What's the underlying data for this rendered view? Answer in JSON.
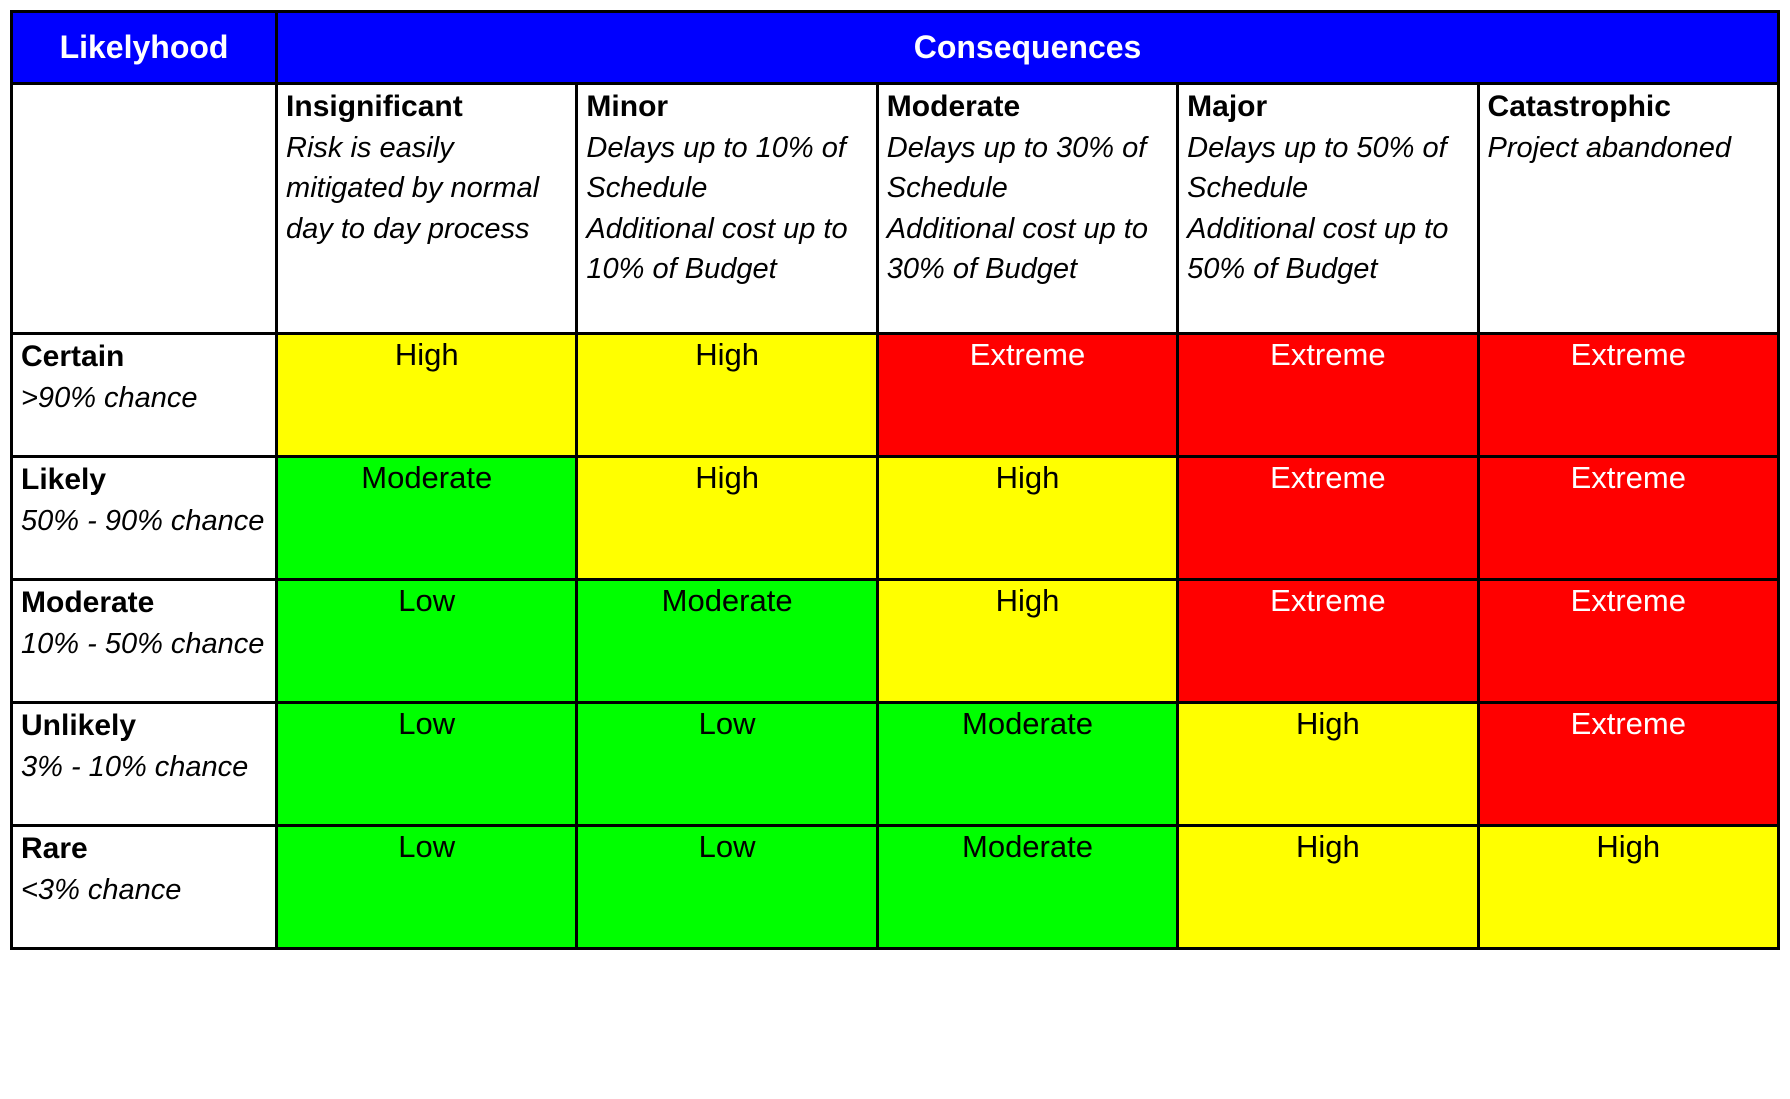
{
  "table": {
    "likelihood_header": "Likelyhood",
    "consequences_header": "Consequences",
    "columns": [
      {
        "name": "Insignificant",
        "description": "Risk is easily mitigated by normal day to day process"
      },
      {
        "name": "Minor",
        "description": "Delays up to 10% of Schedule\nAdditional cost up to 10% of Budget"
      },
      {
        "name": "Moderate",
        "description": "Delays up to 30% of Schedule\nAdditional cost up to 30% of Budget"
      },
      {
        "name": "Major",
        "description": "Delays up to 50% of Schedule\nAdditional cost up to 50% of Budget"
      },
      {
        "name": "Catastrophic",
        "description": "Project abandoned"
      }
    ],
    "rows": [
      {
        "name": "Certain",
        "description": ">90% chance",
        "cells": [
          "High",
          "High",
          "Extreme",
          "Extreme",
          "Extreme"
        ]
      },
      {
        "name": "Likely",
        "description": "50% - 90% chance",
        "cells": [
          "Moderate",
          "High",
          "High",
          "Extreme",
          "Extreme"
        ]
      },
      {
        "name": "Moderate",
        "description": "10% - 50% chance",
        "cells": [
          "Low",
          "Moderate",
          "High",
          "Extreme",
          "Extreme"
        ]
      },
      {
        "name": "Unlikely",
        "description": "3% - 10% chance",
        "cells": [
          "Low",
          "Low",
          "Moderate",
          "High",
          "Extreme"
        ]
      },
      {
        "name": "Rare",
        "description": "<3% chance",
        "cells": [
          "Low",
          "Low",
          "Moderate",
          "High",
          "High"
        ]
      }
    ]
  },
  "colors": {
    "header_bg": "#0000FF",
    "header_text": "#FFFFFF",
    "border": "#000000",
    "ratings": {
      "Low": {
        "bg": "#00FF00",
        "text": "#000000"
      },
      "Moderate": {
        "bg": "#00FF00",
        "text": "#000000"
      },
      "High": {
        "bg": "#FFFF00",
        "text": "#000000"
      },
      "Extreme": {
        "bg": "#FF0000",
        "text": "#FFFFFF"
      }
    }
  },
  "chart_data": {
    "type": "heatmap",
    "title": "",
    "xlabel": "Consequences",
    "ylabel": "Likelyhood",
    "x_categories": [
      "Insignificant",
      "Minor",
      "Moderate",
      "Major",
      "Catastrophic"
    ],
    "y_categories": [
      "Certain",
      "Likely",
      "Moderate",
      "Unlikely",
      "Rare"
    ],
    "x_category_descriptions": [
      "Risk is easily mitigated by normal day to day process",
      "Delays up to 10% of Schedule, Additional cost up to 10% of Budget",
      "Delays up to 30% of Schedule, Additional cost up to 30% of Budget",
      "Delays up to 50% of Schedule, Additional cost up to 50% of Budget",
      "Project abandoned"
    ],
    "y_category_descriptions": [
      ">90% chance",
      "50% - 90% chance",
      "10% - 50% chance",
      "3% - 10% chance",
      "<3% chance"
    ],
    "values": [
      [
        "High",
        "High",
        "Extreme",
        "Extreme",
        "Extreme"
      ],
      [
        "Moderate",
        "High",
        "High",
        "Extreme",
        "Extreme"
      ],
      [
        "Low",
        "Moderate",
        "High",
        "Extreme",
        "Extreme"
      ],
      [
        "Low",
        "Low",
        "Moderate",
        "High",
        "Extreme"
      ],
      [
        "Low",
        "Low",
        "Moderate",
        "High",
        "High"
      ]
    ],
    "color_scale": {
      "Low": "#00FF00",
      "Moderate": "#00FF00",
      "High": "#FFFF00",
      "Extreme": "#FF0000"
    },
    "legend_position": "none",
    "grid": true
  }
}
